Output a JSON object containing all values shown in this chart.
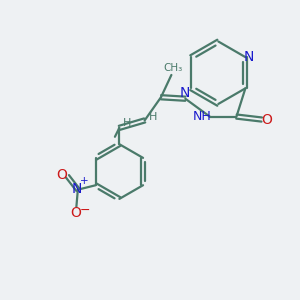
{
  "bg_color": "#eef1f3",
  "bond_color": "#4a7a6a",
  "N_color": "#1a1acc",
  "O_color": "#cc1a1a",
  "font_size": 9,
  "figsize": [
    3.0,
    3.0
  ],
  "dpi": 100,
  "xlim": [
    0,
    10
  ],
  "ylim": [
    0,
    10
  ]
}
